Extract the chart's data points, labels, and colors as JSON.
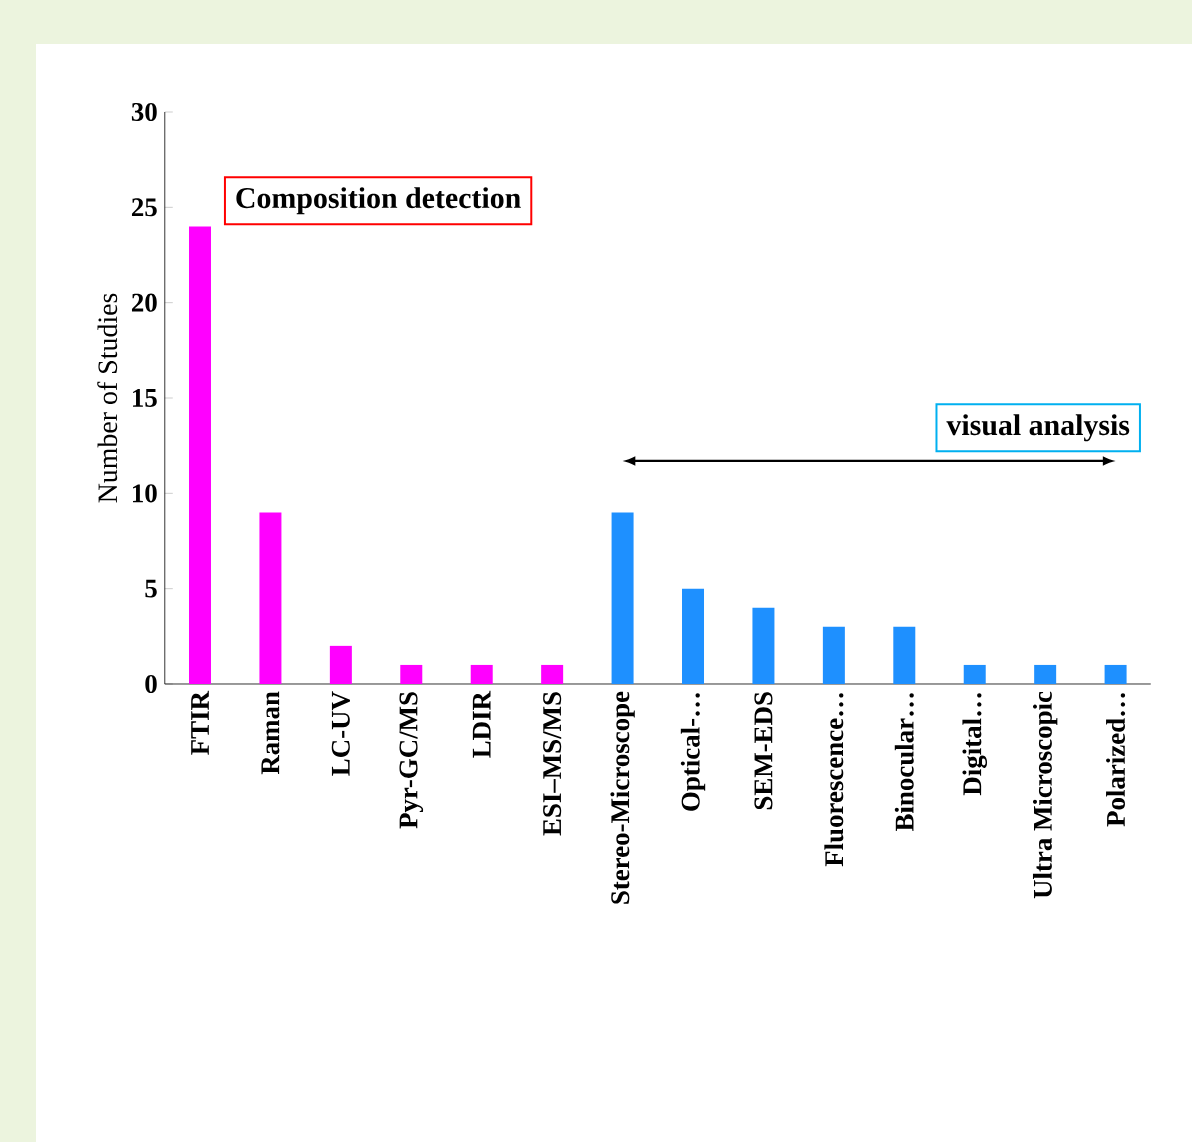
{
  "chart_data": {
    "type": "bar",
    "ylabel": "Number of Studies",
    "categories": [
      "FTIR",
      "Raman",
      "LC-UV",
      "Pyr-GC/MS",
      "LDIR",
      "ESI–MS/MS",
      "Stereo-Microscope",
      "Optical-…",
      "SEM-EDS",
      "Fluorescence…",
      "Binocular…",
      "Digital…",
      "Ultra Microscopic",
      "Polarized…"
    ],
    "values": [
      24,
      9,
      2,
      1,
      1,
      1,
      9,
      5,
      4,
      3,
      3,
      1,
      1,
      1
    ],
    "colors": [
      "#ff00ff",
      "#ff00ff",
      "#ff00ff",
      "#ff00ff",
      "#ff00ff",
      "#ff00ff",
      "#1e90ff",
      "#1e90ff",
      "#1e90ff",
      "#1e90ff",
      "#1e90ff",
      "#1e90ff",
      "#1e90ff",
      "#1e90ff"
    ],
    "ylim": [
      0,
      30
    ],
    "yticks": [
      0,
      5,
      10,
      15,
      20,
      25,
      30
    ],
    "annotations": [
      "Composition detection",
      "visual analysis"
    ]
  }
}
